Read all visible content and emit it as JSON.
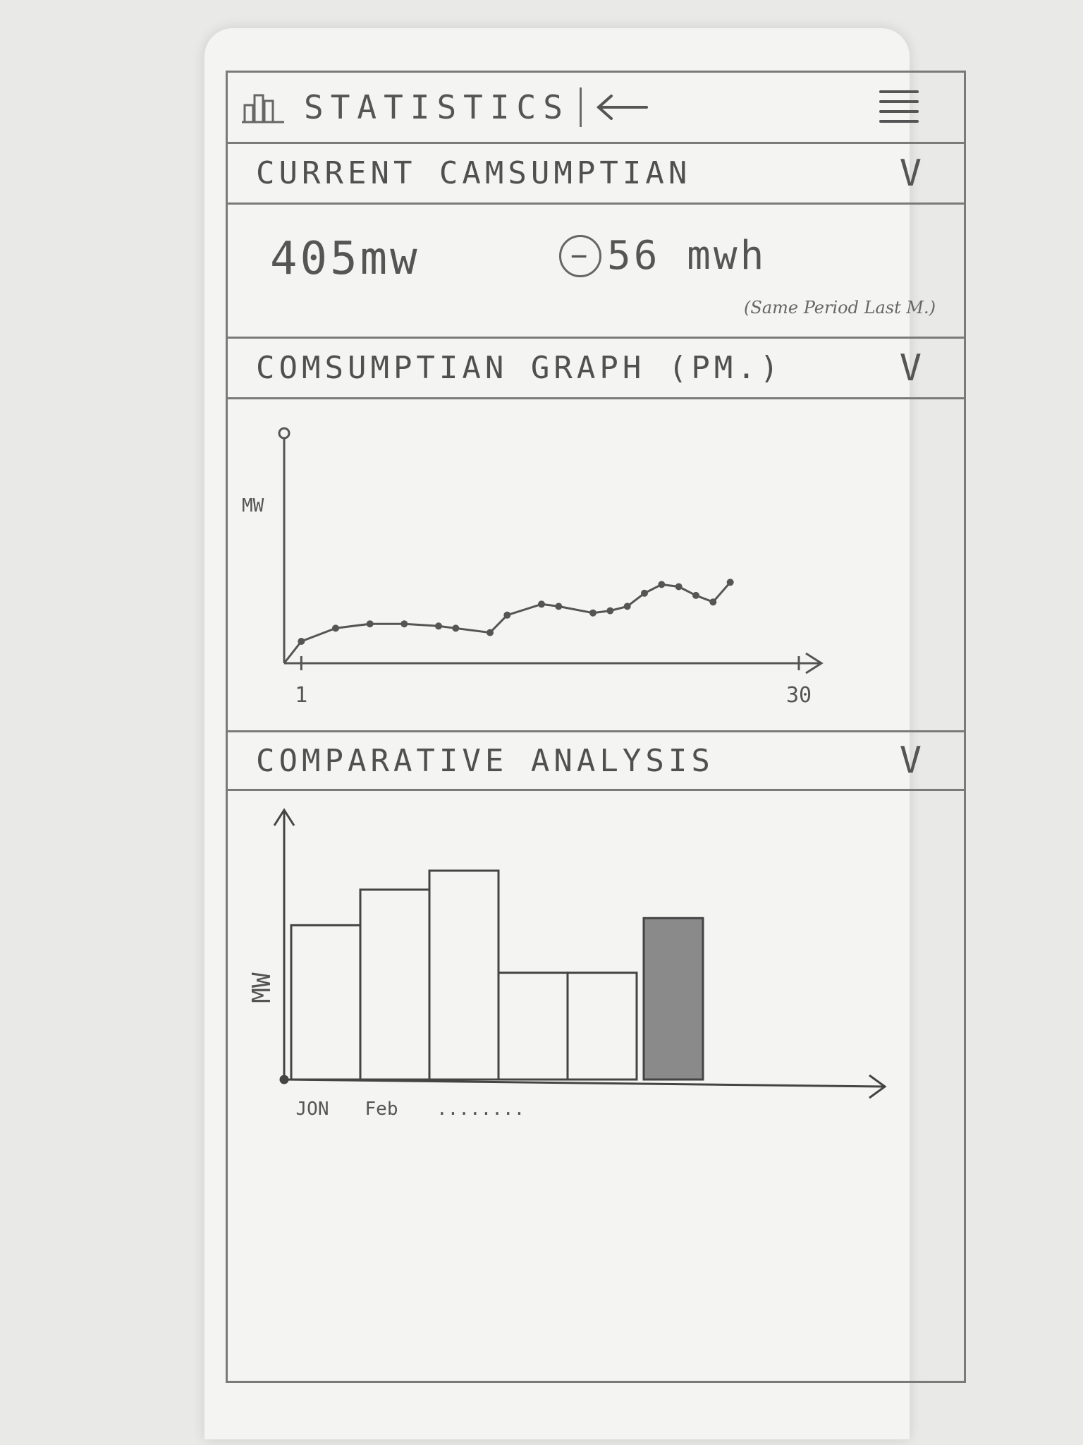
{
  "header": {
    "title": "STATISTICS",
    "icons": {
      "stats": "bar-chart-icon",
      "back": "arrow-left-icon",
      "menu": "hamburger-menu-icon"
    }
  },
  "current_consumption": {
    "heading": "CURRENT CAMSUMPTIAN",
    "chevron": "V",
    "value": "405mw",
    "delta_sign": "−",
    "delta_value": "56 mwh",
    "delta_note": "(Same Period Last M.)"
  },
  "consumption_graph": {
    "heading": "COMSUMPTIAN GRAPH (PM.)",
    "chevron": "V"
  },
  "comparative_analysis": {
    "heading": "COMPARATIVE ANALYSIS",
    "chevron": "V"
  },
  "chart_data": [
    {
      "type": "line",
      "ylabel": "MW",
      "x_ticks": [
        "1",
        "30"
      ],
      "xlim": [
        0,
        30
      ],
      "ylim": [
        0,
        10
      ],
      "x": [
        1,
        3,
        5,
        7,
        9,
        10,
        12,
        13,
        15,
        16,
        18,
        19,
        20,
        21,
        22,
        23,
        24,
        25,
        26
      ],
      "y": [
        1.0,
        1.6,
        1.8,
        1.8,
        1.7,
        1.6,
        1.4,
        2.2,
        2.7,
        2.6,
        2.3,
        2.4,
        2.6,
        3.2,
        3.6,
        3.5,
        3.1,
        2.8,
        3.7
      ]
    },
    {
      "type": "bar",
      "ylabel": "MW",
      "categories": [
        "JON",
        "Feb",
        "",
        "",
        "",
        ""
      ],
      "values": [
        6.5,
        8.0,
        8.8,
        4.5,
        4.5,
        6.8
      ],
      "highlight_index": 5,
      "ylim": [
        0,
        11
      ],
      "trailing_label": "........"
    }
  ]
}
